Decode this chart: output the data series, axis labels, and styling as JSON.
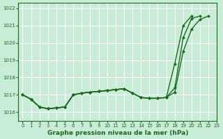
{
  "title": "Graphe pression niveau de la mer (hPa)",
  "bg_color": "#c8ecd8",
  "grid_color": "#ffffff",
  "line_color": "#1a6b1a",
  "xlim": [
    -0.5,
    23
  ],
  "ylim": [
    1015.5,
    1022.3
  ],
  "yticks": [
    1016,
    1017,
    1018,
    1019,
    1020,
    1021,
    1022
  ],
  "xticks": [
    0,
    1,
    2,
    3,
    4,
    5,
    6,
    7,
    8,
    9,
    10,
    11,
    12,
    13,
    14,
    15,
    16,
    17,
    18,
    19,
    20,
    21,
    22,
    23
  ],
  "series": [
    [
      1017.0,
      1016.75,
      1016.3,
      1016.2,
      1016.25,
      1016.3,
      1017.0,
      1017.1,
      1017.15,
      1017.2,
      1017.25,
      1017.3,
      1017.35,
      1017.1,
      1016.85,
      1016.8,
      1016.8,
      1016.85,
      1017.15,
      1019.5,
      1020.8,
      1021.35,
      1021.55,
      null
    ],
    [
      1017.0,
      1016.75,
      1016.3,
      1016.2,
      1016.25,
      1016.3,
      1017.0,
      1017.1,
      1017.15,
      1017.2,
      1017.25,
      1017.3,
      1017.35,
      null,
      null,
      null,
      null,
      null,
      null,
      null,
      null,
      null,
      null,
      null
    ],
    [
      1017.0,
      1016.75,
      1016.3,
      1016.2,
      1016.25,
      1016.3,
      1017.0,
      1017.1,
      1017.15,
      1017.2,
      1017.25,
      1017.3,
      1017.35,
      1017.1,
      1016.85,
      1016.8,
      1016.8,
      1016.85,
      1017.4,
      1020.3,
      1021.4,
      1021.55,
      null,
      null
    ],
    [
      1017.0,
      1016.75,
      1016.3,
      1016.2,
      1016.25,
      1016.3,
      1017.0,
      1017.1,
      1017.15,
      1017.2,
      1017.25,
      1017.3,
      1017.35,
      1017.1,
      1016.85,
      1016.8,
      1016.8,
      1016.85,
      1018.8,
      1021.0,
      1021.55,
      null,
      null,
      null
    ]
  ],
  "marker": "D",
  "marker_size": 2.0,
  "line_width": 1.0,
  "font_size_label": 6.5,
  "font_size_tick": 5.0
}
